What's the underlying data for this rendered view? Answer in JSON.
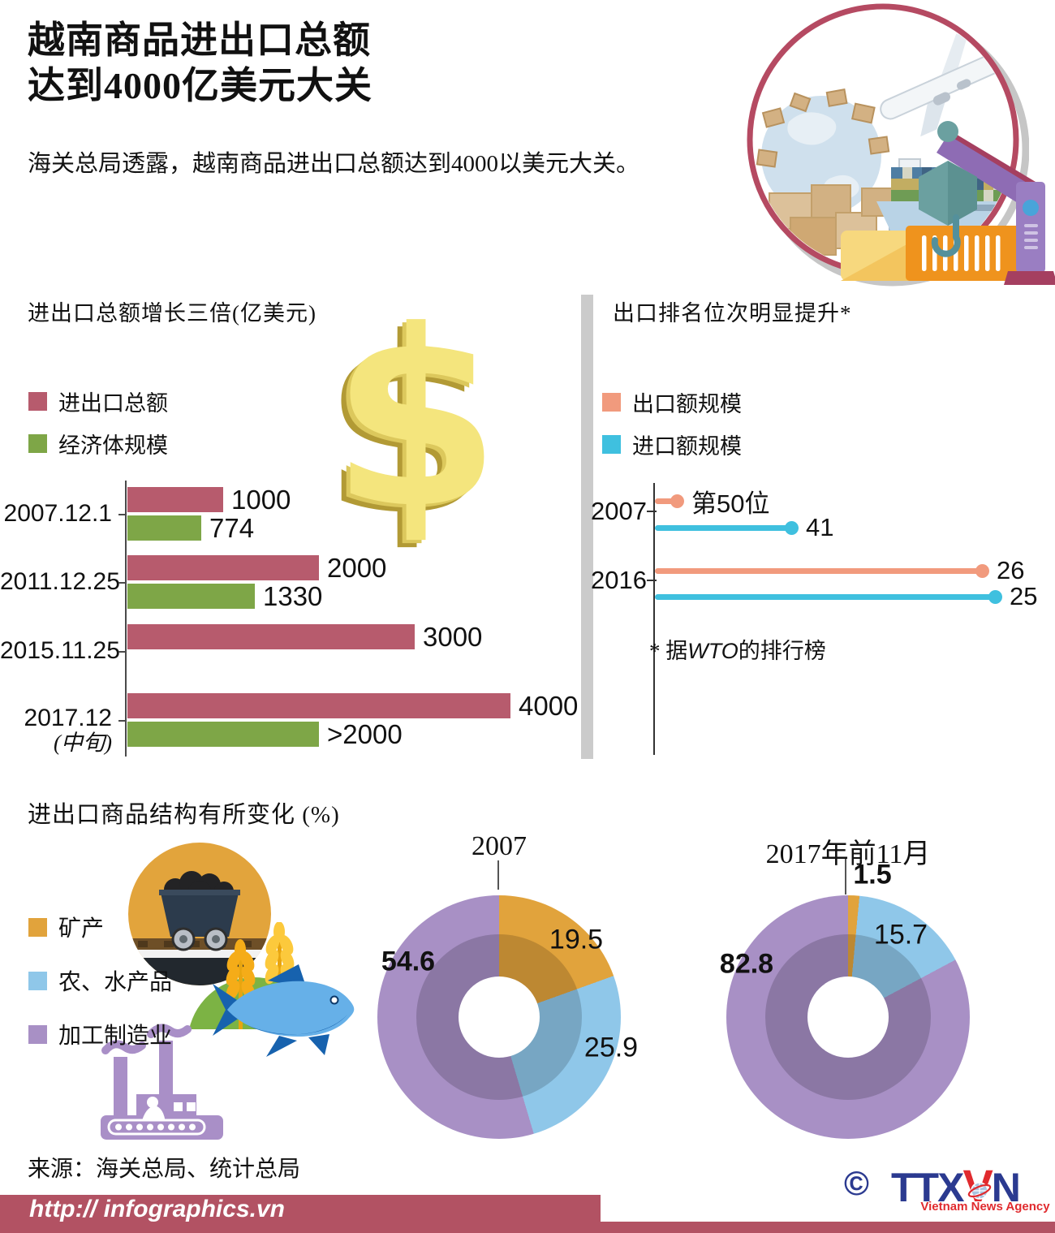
{
  "header": {
    "title_line1": "越南商品进出口总额",
    "title_line2": "达到4000亿美元大关",
    "subtitle": "海关总局透露，越南商品进出口总额达到4000以美元大关。"
  },
  "growth": {
    "title": "进出口总额增长三倍(亿美元)",
    "legend": [
      {
        "label": "进出口总额",
        "color": "#b75b6d"
      },
      {
        "label": "经济体规模",
        "color": "#7ea647"
      }
    ]
  },
  "ranking": {
    "title": "出口排名位次明显提升*",
    "legend": [
      {
        "label": "出口额规模",
        "color": "#f19a7d"
      },
      {
        "label": "进口额规模",
        "color": "#3fc0df"
      }
    ],
    "note_prefix": "* 据",
    "note_italic": "WTO",
    "note_suffix": "的排行榜"
  },
  "structure": {
    "title": "进出口商品结构有所变化 (%)",
    "legend": [
      {
        "label": "矿产",
        "color": "#e1a33c"
      },
      {
        "label": "农、水产品",
        "color": "#8fc7e9"
      },
      {
        "label": "加工制造业",
        "color": "#a890c5"
      }
    ]
  },
  "source": "来源：海关总局、统计总局",
  "footer": {
    "url": "http:// infographics.vn",
    "copyright": "©",
    "logo_ttx": "TTX",
    "logo_v": "V",
    "logo_n": "N",
    "logo_tagline": "Vietnam News Agency"
  },
  "chart_data": [
    {
      "type": "bar",
      "title": "进出口总额增长三倍(亿美元)",
      "orientation": "horizontal",
      "categories": [
        "2007.12.1",
        "2011.12.25",
        "2015.11.25",
        "2017.12 (中旬)"
      ],
      "series": [
        {
          "name": "进出口总额",
          "color": "#b75b6d",
          "values": [
            1000,
            2000,
            3000,
            4000
          ],
          "labels": [
            "1000",
            "2000",
            "3000",
            "4000"
          ]
        },
        {
          "name": "经济体规模",
          "color": "#7ea647",
          "values": [
            774,
            1330,
            null,
            2000
          ],
          "labels": [
            "774",
            "1330",
            "",
            ">2000"
          ]
        }
      ],
      "xlim": [
        0,
        4200
      ],
      "unit": "亿美元"
    },
    {
      "type": "lollipop",
      "title": "出口排名位次明显提升*",
      "categories": [
        "2007",
        "2016"
      ],
      "series": [
        {
          "name": "出口额规模",
          "color": "#f19a7d",
          "values": [
            50,
            26
          ],
          "labels": [
            "第50位",
            "26"
          ]
        },
        {
          "name": "进口额规模",
          "color": "#3fc0df",
          "values": [
            41,
            25
          ],
          "labels": [
            "41",
            "25"
          ]
        }
      ],
      "note": "* 据WTO的排行榜",
      "value_meaning": "WTO rank, lower rank drawn as longer line"
    },
    {
      "type": "pie",
      "title": "进出口商品结构有所变化 (%)",
      "legend": [
        "矿产",
        "农、水产品",
        "加工制造业"
      ],
      "colors": [
        "#e1a33c",
        "#8fc7e9",
        "#a890c5"
      ],
      "inner_colors": [
        "#bd8832",
        "#77a6c3",
        "#8b77a4"
      ],
      "donuts": [
        {
          "title": "2007",
          "values": [
            19.5,
            25.9,
            54.6
          ]
        },
        {
          "title": "2017年前11月",
          "values": [
            1.5,
            15.7,
            82.8
          ]
        }
      ]
    }
  ]
}
